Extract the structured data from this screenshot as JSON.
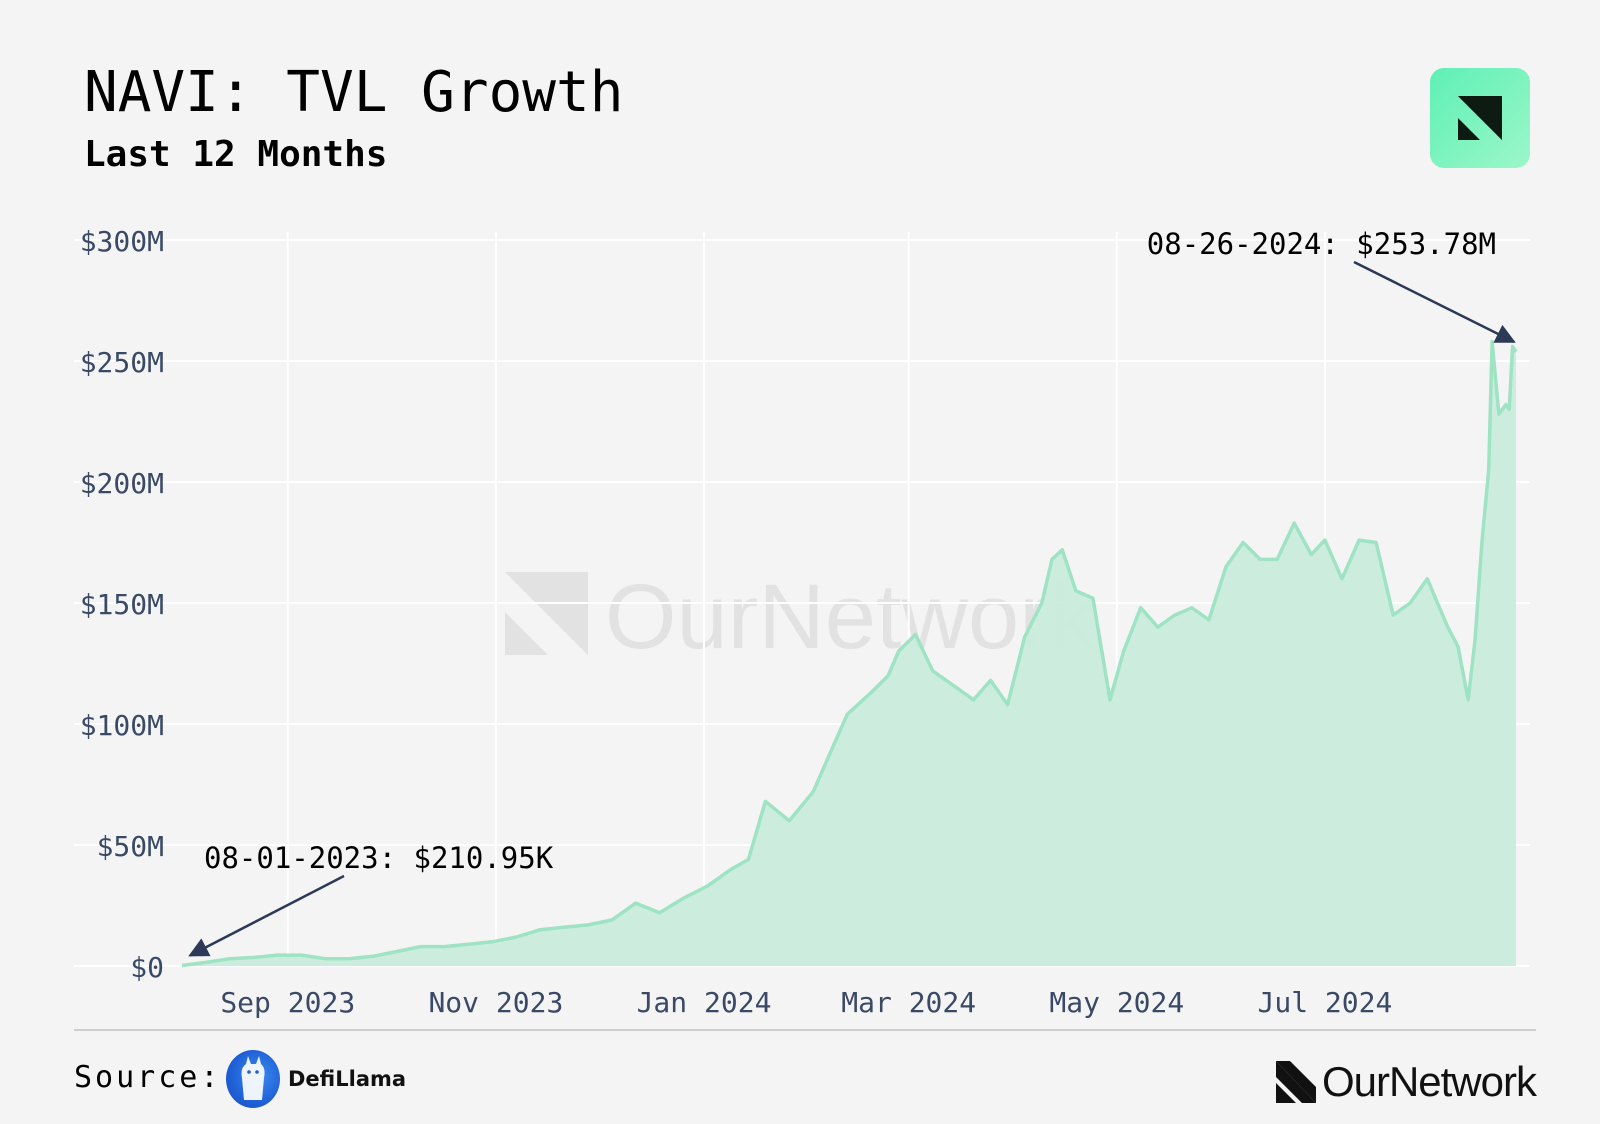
{
  "header": {
    "title": "NAVI: TVL Growth",
    "subtitle": "Last 12 Months"
  },
  "footer": {
    "source_label": "Source:",
    "source_name": "DefiLlama",
    "brand_name": "OurNetwork"
  },
  "watermark": "OurNetwork",
  "colors": {
    "background": "#f4f4f4",
    "area_fill": "#c9ecdc",
    "area_line": "#9ee3c3",
    "axis_text": "#3a4a66",
    "arrow": "#2b3a57",
    "grid": "#ffffff"
  },
  "chart_data": {
    "type": "area",
    "title": "NAVI: TVL Growth",
    "subtitle": "Last 12 Months",
    "x_range": [
      "2023-08-01",
      "2024-08-26"
    ],
    "ylim": [
      0,
      300
    ],
    "y_unit": "$M",
    "y_ticks": [
      {
        "value": 0,
        "label": "$0"
      },
      {
        "value": 50,
        "label": "$50M"
      },
      {
        "value": 100,
        "label": "$100M"
      },
      {
        "value": 150,
        "label": "$150M"
      },
      {
        "value": 200,
        "label": "$200M"
      },
      {
        "value": 250,
        "label": "$250M"
      },
      {
        "value": 300,
        "label": "$300M"
      }
    ],
    "x_ticks": [
      {
        "date": "2023-09-01",
        "label": "Sep 2023"
      },
      {
        "date": "2023-11-01",
        "label": "Nov 2023"
      },
      {
        "date": "2024-01-01",
        "label": "Jan 2024"
      },
      {
        "date": "2024-03-01",
        "label": "Mar 2024"
      },
      {
        "date": "2024-05-01",
        "label": "May 2024"
      },
      {
        "date": "2024-07-01",
        "label": "Jul 2024"
      }
    ],
    "grid": true,
    "series": [
      {
        "points": [
          [
            "2023-08-01",
            0.21
          ],
          [
            "2023-08-08",
            1.5
          ],
          [
            "2023-08-15",
            3
          ],
          [
            "2023-08-22",
            3.5
          ],
          [
            "2023-08-29",
            4.5
          ],
          [
            "2023-09-05",
            4.5
          ],
          [
            "2023-09-12",
            3
          ],
          [
            "2023-09-19",
            3
          ],
          [
            "2023-09-26",
            4
          ],
          [
            "2023-10-03",
            6
          ],
          [
            "2023-10-10",
            8
          ],
          [
            "2023-10-17",
            8
          ],
          [
            "2023-10-24",
            9
          ],
          [
            "2023-10-31",
            10
          ],
          [
            "2023-11-07",
            12
          ],
          [
            "2023-11-14",
            15
          ],
          [
            "2023-11-21",
            16
          ],
          [
            "2023-11-28",
            17
          ],
          [
            "2023-12-05",
            19
          ],
          [
            "2023-12-12",
            26
          ],
          [
            "2023-12-19",
            22
          ],
          [
            "2023-12-26",
            28
          ],
          [
            "2024-01-02",
            33
          ],
          [
            "2024-01-09",
            40
          ],
          [
            "2024-01-14",
            44
          ],
          [
            "2024-01-19",
            68
          ],
          [
            "2024-01-26",
            60
          ],
          [
            "2024-02-02",
            72
          ],
          [
            "2024-02-07",
            88
          ],
          [
            "2024-02-12",
            104
          ],
          [
            "2024-02-19",
            113
          ],
          [
            "2024-02-24",
            120
          ],
          [
            "2024-02-27",
            130
          ],
          [
            "2024-03-03",
            137
          ],
          [
            "2024-03-08",
            122
          ],
          [
            "2024-03-15",
            115
          ],
          [
            "2024-03-20",
            110
          ],
          [
            "2024-03-25",
            118
          ],
          [
            "2024-03-30",
            108
          ],
          [
            "2024-04-04",
            136
          ],
          [
            "2024-04-09",
            150
          ],
          [
            "2024-04-12",
            168
          ],
          [
            "2024-04-15",
            172
          ],
          [
            "2024-04-19",
            155
          ],
          [
            "2024-04-24",
            152
          ],
          [
            "2024-04-29",
            110
          ],
          [
            "2024-05-03",
            130
          ],
          [
            "2024-05-08",
            148
          ],
          [
            "2024-05-13",
            140
          ],
          [
            "2024-05-18",
            145
          ],
          [
            "2024-05-23",
            148
          ],
          [
            "2024-05-28",
            143
          ],
          [
            "2024-06-02",
            165
          ],
          [
            "2024-06-07",
            175
          ],
          [
            "2024-06-12",
            168
          ],
          [
            "2024-06-17",
            168
          ],
          [
            "2024-06-22",
            183
          ],
          [
            "2024-06-27",
            170
          ],
          [
            "2024-07-01",
            176
          ],
          [
            "2024-07-06",
            160
          ],
          [
            "2024-07-11",
            176
          ],
          [
            "2024-07-16",
            175
          ],
          [
            "2024-07-21",
            145
          ],
          [
            "2024-07-26",
            150
          ],
          [
            "2024-07-31",
            160
          ],
          [
            "2024-08-03",
            150
          ],
          [
            "2024-08-06",
            140
          ],
          [
            "2024-08-09",
            132
          ],
          [
            "2024-08-12",
            110
          ],
          [
            "2024-08-14",
            135
          ],
          [
            "2024-08-16",
            175
          ],
          [
            "2024-08-18",
            205
          ],
          [
            "2024-08-19",
            258
          ],
          [
            "2024-08-21",
            228
          ],
          [
            "2024-08-23",
            232
          ],
          [
            "2024-08-24",
            230
          ],
          [
            "2024-08-25",
            256
          ],
          [
            "2024-08-26",
            253.78
          ]
        ]
      }
    ],
    "annotations": [
      {
        "date": "2023-08-01",
        "value": 0.21,
        "label": "08-01-2023: $210.95K"
      },
      {
        "date": "2024-08-26",
        "value": 253.78,
        "label": "08-26-2024: $253.78M"
      }
    ]
  }
}
